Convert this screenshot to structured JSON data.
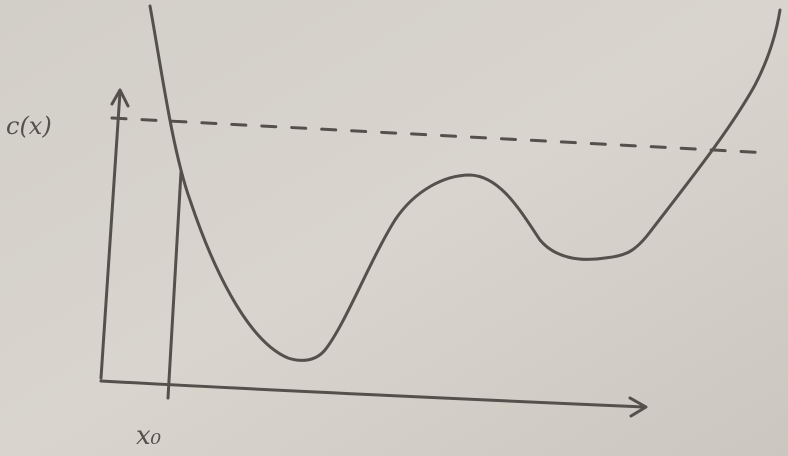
{
  "labels": {
    "y_axis": "c(x)",
    "x_marker": "x₀"
  }
}
